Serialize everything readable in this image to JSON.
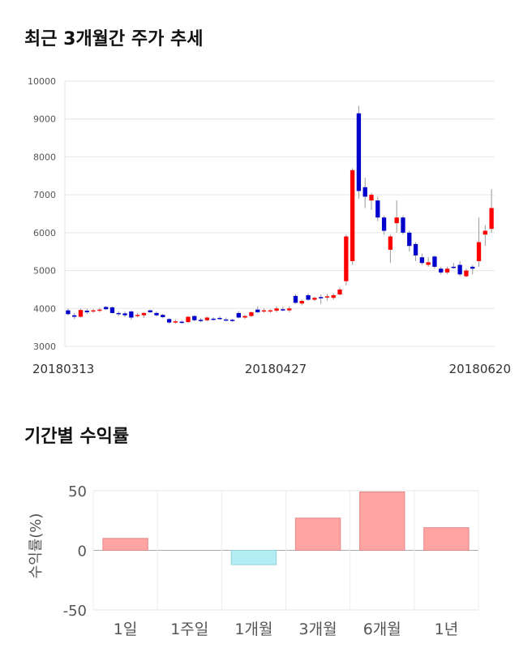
{
  "sections": {
    "price_title": "최근 3개월간 주가 추세",
    "return_title": "기간별 수익률"
  },
  "chart_data": [
    {
      "type": "candlestick",
      "title": "최근 3개월간 주가 추세",
      "ylim": [
        3000,
        10000
      ],
      "yticks": [
        "3000",
        "4000",
        "5000",
        "6000",
        "7000",
        "8000",
        "9000",
        "10000"
      ],
      "xlabels": [
        "20180313",
        "20180427",
        "20180620"
      ],
      "colors": {
        "up": "#ff0000",
        "down": "#0000cc",
        "wick": "#999999"
      },
      "candles": [
        {
          "o": 3950,
          "h": 4000,
          "l": 3820,
          "c": 3850
        },
        {
          "o": 3820,
          "h": 3880,
          "l": 3720,
          "c": 3780
        },
        {
          "o": 3780,
          "h": 4000,
          "l": 3760,
          "c": 3960
        },
        {
          "o": 3940,
          "h": 3990,
          "l": 3860,
          "c": 3900
        },
        {
          "o": 3920,
          "h": 3990,
          "l": 3880,
          "c": 3950
        },
        {
          "o": 3950,
          "h": 4020,
          "l": 3900,
          "c": 3970
        },
        {
          "o": 4040,
          "h": 4060,
          "l": 3960,
          "c": 3980
        },
        {
          "o": 4030,
          "h": 4050,
          "l": 3870,
          "c": 3880
        },
        {
          "o": 3880,
          "h": 3930,
          "l": 3800,
          "c": 3850
        },
        {
          "o": 3870,
          "h": 3920,
          "l": 3770,
          "c": 3820
        },
        {
          "o": 3920,
          "h": 3950,
          "l": 3700,
          "c": 3760
        },
        {
          "o": 3810,
          "h": 3880,
          "l": 3760,
          "c": 3830
        },
        {
          "o": 3820,
          "h": 3900,
          "l": 3750,
          "c": 3880
        },
        {
          "o": 3950,
          "h": 3970,
          "l": 3880,
          "c": 3900
        },
        {
          "o": 3880,
          "h": 3920,
          "l": 3790,
          "c": 3820
        },
        {
          "o": 3830,
          "h": 3860,
          "l": 3740,
          "c": 3770
        },
        {
          "o": 3720,
          "h": 3740,
          "l": 3600,
          "c": 3630
        },
        {
          "o": 3630,
          "h": 3700,
          "l": 3600,
          "c": 3660
        },
        {
          "o": 3650,
          "h": 3690,
          "l": 3600,
          "c": 3640
        },
        {
          "o": 3640,
          "h": 3800,
          "l": 3620,
          "c": 3780
        },
        {
          "o": 3800,
          "h": 3820,
          "l": 3660,
          "c": 3690
        },
        {
          "o": 3700,
          "h": 3750,
          "l": 3640,
          "c": 3680
        },
        {
          "o": 3690,
          "h": 3780,
          "l": 3660,
          "c": 3760
        },
        {
          "o": 3730,
          "h": 3770,
          "l": 3680,
          "c": 3720
        },
        {
          "o": 3750,
          "h": 3800,
          "l": 3700,
          "c": 3720
        },
        {
          "o": 3710,
          "h": 3760,
          "l": 3660,
          "c": 3700
        },
        {
          "o": 3700,
          "h": 3730,
          "l": 3650,
          "c": 3690
        },
        {
          "o": 3880,
          "h": 3930,
          "l": 3740,
          "c": 3760
        },
        {
          "o": 3760,
          "h": 3830,
          "l": 3720,
          "c": 3800
        },
        {
          "o": 3800,
          "h": 3920,
          "l": 3780,
          "c": 3900
        },
        {
          "o": 3970,
          "h": 4060,
          "l": 3880,
          "c": 3900
        },
        {
          "o": 3920,
          "h": 4000,
          "l": 3880,
          "c": 3950
        },
        {
          "o": 3930,
          "h": 3980,
          "l": 3880,
          "c": 3950
        },
        {
          "o": 3940,
          "h": 4050,
          "l": 3900,
          "c": 4000
        },
        {
          "o": 3980,
          "h": 4050,
          "l": 3930,
          "c": 3960
        },
        {
          "o": 3950,
          "h": 4050,
          "l": 3900,
          "c": 4000
        },
        {
          "o": 4330,
          "h": 4380,
          "l": 4120,
          "c": 4150
        },
        {
          "o": 4130,
          "h": 4230,
          "l": 4080,
          "c": 4200
        },
        {
          "o": 4350,
          "h": 4400,
          "l": 4200,
          "c": 4230
        },
        {
          "o": 4230,
          "h": 4310,
          "l": 4200,
          "c": 4280
        },
        {
          "o": 4300,
          "h": 4370,
          "l": 4120,
          "c": 4290
        },
        {
          "o": 4300,
          "h": 4380,
          "l": 4200,
          "c": 4320
        },
        {
          "o": 4280,
          "h": 4400,
          "l": 4230,
          "c": 4350
        },
        {
          "o": 4370,
          "h": 4560,
          "l": 4340,
          "c": 4500
        },
        {
          "o": 4720,
          "h": 5950,
          "l": 4600,
          "c": 5900
        },
        {
          "o": 5250,
          "h": 7700,
          "l": 5150,
          "c": 7650
        },
        {
          "o": 9150,
          "h": 9350,
          "l": 6900,
          "c": 7100
        },
        {
          "o": 7200,
          "h": 7450,
          "l": 6650,
          "c": 6950
        },
        {
          "o": 6850,
          "h": 7050,
          "l": 6600,
          "c": 7000
        },
        {
          "o": 6850,
          "h": 6950,
          "l": 6300,
          "c": 6400
        },
        {
          "o": 6400,
          "h": 6450,
          "l": 5950,
          "c": 6050
        },
        {
          "o": 5550,
          "h": 5950,
          "l": 5200,
          "c": 5900
        },
        {
          "o": 6250,
          "h": 6850,
          "l": 6000,
          "c": 6400
        },
        {
          "o": 6400,
          "h": 6450,
          "l": 5950,
          "c": 6000
        },
        {
          "o": 6000,
          "h": 6050,
          "l": 5500,
          "c": 5650
        },
        {
          "o": 5700,
          "h": 5750,
          "l": 5250,
          "c": 5400
        },
        {
          "o": 5350,
          "h": 5450,
          "l": 5150,
          "c": 5200
        },
        {
          "o": 5150,
          "h": 5350,
          "l": 5100,
          "c": 5220
        },
        {
          "o": 5370,
          "h": 5400,
          "l": 5050,
          "c": 5100
        },
        {
          "o": 5050,
          "h": 5100,
          "l": 4900,
          "c": 4950
        },
        {
          "o": 4950,
          "h": 5100,
          "l": 4900,
          "c": 5050
        },
        {
          "o": 5100,
          "h": 5200,
          "l": 5050,
          "c": 5080
        },
        {
          "o": 5150,
          "h": 5250,
          "l": 4850,
          "c": 4900
        },
        {
          "o": 4850,
          "h": 5050,
          "l": 4820,
          "c": 5000
        },
        {
          "o": 5100,
          "h": 5150,
          "l": 4900,
          "c": 5050
        },
        {
          "o": 5250,
          "h": 6400,
          "l": 5100,
          "c": 5750
        },
        {
          "o": 5950,
          "h": 6200,
          "l": 5650,
          "c": 6050
        },
        {
          "o": 6100,
          "h": 7150,
          "l": 6000,
          "c": 6650
        }
      ]
    },
    {
      "type": "bar",
      "title": "기간별 수익률",
      "ylabel": "수익률(%)",
      "ylim": [
        -50,
        50
      ],
      "yticks": [
        "50",
        "0",
        "-50"
      ],
      "categories": [
        "1일",
        "1주일",
        "1개월",
        "3개월",
        "6개월",
        "1년"
      ],
      "values": [
        10,
        0,
        -12,
        27,
        49,
        19
      ],
      "colors": {
        "positive": "#ffa3a3",
        "negative": "#b3ecf2"
      }
    }
  ]
}
